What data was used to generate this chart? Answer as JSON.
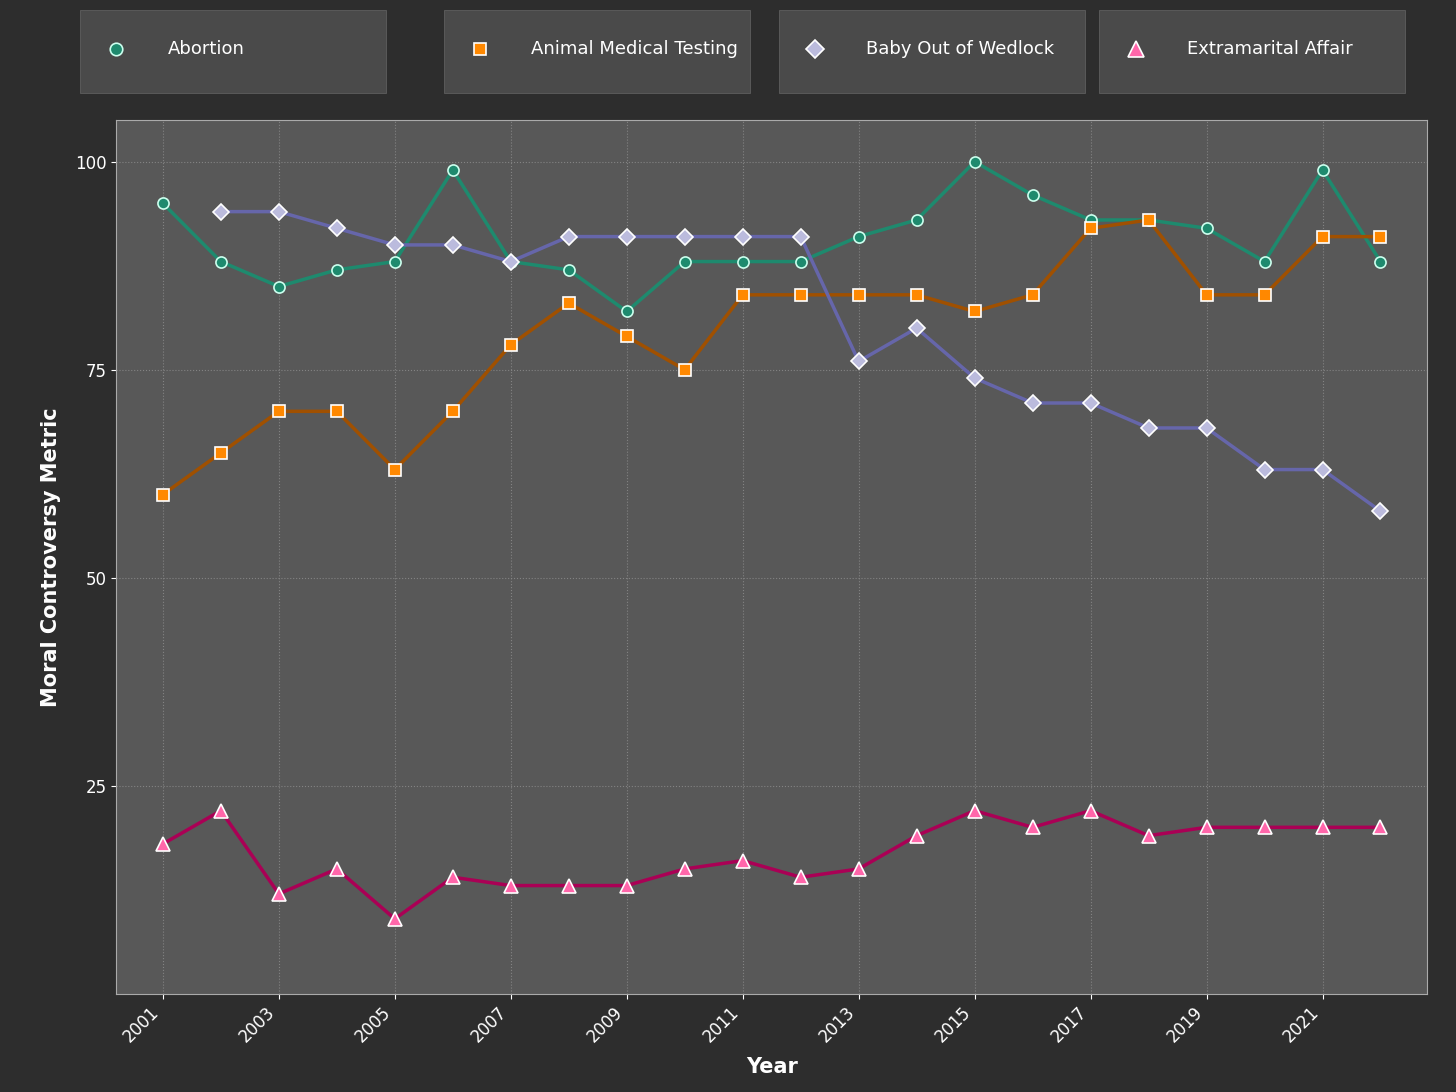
{
  "outer_bg": "#2d2d2d",
  "plot_bg": "#585858",
  "legend_bg": "#3d3d3d",
  "text_color": "#ffffff",
  "xlabel": "Year",
  "ylabel": "Moral Controversy Metric",
  "ylim": [
    0,
    105
  ],
  "yticks": [
    25,
    50,
    75,
    100
  ],
  "xticks": [
    2001,
    2003,
    2005,
    2007,
    2009,
    2011,
    2013,
    2015,
    2017,
    2019,
    2021
  ],
  "grid_color": "#888888",
  "series": {
    "Abortion": {
      "line_color": "#1e8a6e",
      "marker_face": "#1e8a6e",
      "marker_edge": "#ccffee",
      "marker": "o",
      "years": [
        2001,
        2002,
        2003,
        2004,
        2005,
        2006,
        2007,
        2008,
        2009,
        2010,
        2011,
        2012,
        2013,
        2014,
        2015,
        2016,
        2017,
        2018,
        2019,
        2020,
        2021,
        2022
      ],
      "values": [
        95,
        88,
        85,
        87,
        88,
        99,
        88,
        87,
        82,
        88,
        88,
        88,
        91,
        93,
        100,
        96,
        93,
        93,
        92,
        88,
        99,
        88
      ]
    },
    "Animal Medical Testing": {
      "line_color": "#a05000",
      "marker_face": "#ff8800",
      "marker_edge": "#ffffff",
      "marker": "s",
      "years": [
        2001,
        2002,
        2003,
        2004,
        2005,
        2006,
        2007,
        2008,
        2009,
        2010,
        2011,
        2012,
        2013,
        2014,
        2015,
        2016,
        2017,
        2018,
        2019,
        2020,
        2021,
        2022
      ],
      "values": [
        60,
        65,
        70,
        70,
        63,
        70,
        78,
        83,
        79,
        75,
        84,
        84,
        84,
        84,
        82,
        84,
        92,
        93,
        84,
        84,
        91,
        91
      ]
    },
    "Baby Out of Wedlock": {
      "line_color": "#6666aa",
      "marker_face": "#bbbbdd",
      "marker_edge": "#ffffff",
      "marker": "D",
      "years": [
        2002,
        2003,
        2004,
        2005,
        2006,
        2007,
        2008,
        2009,
        2010,
        2011,
        2012,
        2013,
        2014,
        2015,
        2016,
        2017,
        2018,
        2019,
        2020,
        2021,
        2022
      ],
      "values": [
        94,
        94,
        92,
        90,
        90,
        88,
        91,
        91,
        91,
        91,
        91,
        76,
        80,
        74,
        71,
        71,
        68,
        68,
        63,
        63,
        58
      ]
    },
    "Extramarital Affair": {
      "line_color": "#aa0055",
      "marker_face": "#ff66aa",
      "marker_edge": "#ffffff",
      "marker": "^",
      "years": [
        2001,
        2002,
        2003,
        2004,
        2005,
        2006,
        2007,
        2008,
        2009,
        2010,
        2011,
        2012,
        2013,
        2014,
        2015,
        2016,
        2017,
        2018,
        2019,
        2020,
        2021,
        2022
      ],
      "values": [
        18,
        22,
        12,
        15,
        9,
        14,
        13,
        13,
        13,
        15,
        16,
        14,
        15,
        19,
        22,
        20,
        22,
        19,
        20,
        20,
        20,
        20
      ]
    }
  },
  "legend_items": [
    "Abortion",
    "Animal Medical Testing",
    "Baby Out of Wedlock",
    "Extramarital Affair"
  ],
  "fontsize_axis_label": 15,
  "fontsize_tick": 12,
  "fontsize_legend": 13,
  "linewidth": 2.5,
  "markersize": 8
}
